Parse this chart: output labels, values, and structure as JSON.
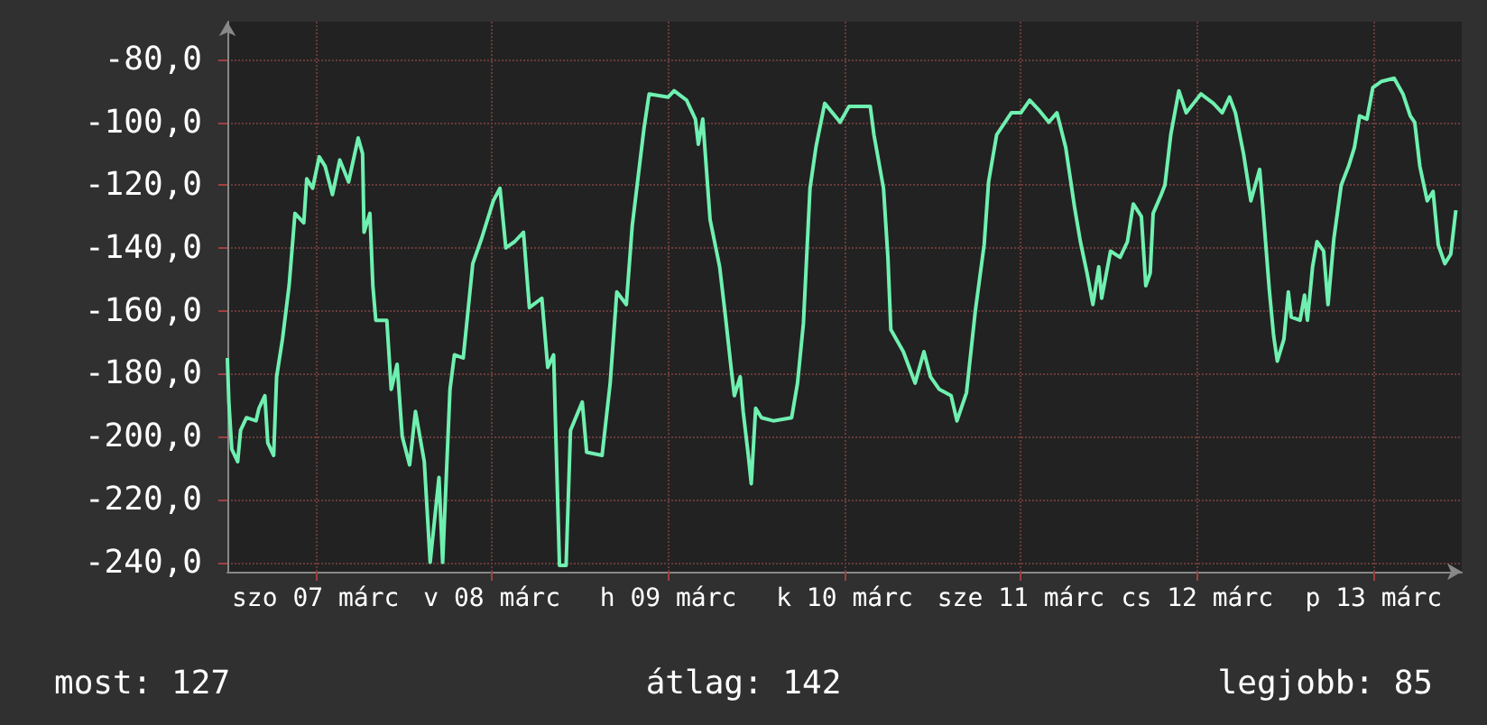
{
  "chart_data": {
    "type": "line",
    "xlim": [
      "--03-07T00:00",
      "--03-14T00:00"
    ],
    "ylim": [
      -243,
      -68
    ],
    "xticks": [
      {
        "value": "--03-07T12:00",
        "label": "szo 07 márc"
      },
      {
        "value": "--03-08T12:00",
        "label": "v 08 márc"
      },
      {
        "value": "--03-09T12:00",
        "label": "h 09 márc"
      },
      {
        "value": "--03-10T12:00",
        "label": "k 10 márc"
      },
      {
        "value": "--03-11T12:00",
        "label": "sze 11 márc"
      },
      {
        "value": "--03-12T12:00",
        "label": "cs 12 márc"
      },
      {
        "value": "--03-13T12:00",
        "label": "p 13 márc"
      }
    ],
    "yticks": [
      {
        "value": -240,
        "label": "-240,0"
      },
      {
        "value": -220,
        "label": "-220,0"
      },
      {
        "value": -200,
        "label": "-200,0"
      },
      {
        "value": -180,
        "label": "-180,0"
      },
      {
        "value": -160,
        "label": "-160,0"
      },
      {
        "value": -140,
        "label": "-140,0"
      },
      {
        "value": -120,
        "label": "-120,0"
      },
      {
        "value": -100,
        "label": "-100,0"
      },
      {
        "value": -80,
        "label": "-80,0"
      }
    ],
    "grid": true,
    "marker": "none",
    "line_style": "solid",
    "annotations": [
      "most: 127",
      "átlag: 142",
      "legjobb: 85"
    ],
    "series": [
      {
        "color": "#6ff0b0",
        "x": [
          "--03-07T00:00",
          "--03-07T00:12",
          "--03-07T00:36",
          "--03-07T01:24",
          "--03-07T01:48",
          "--03-07T02:36",
          "--03-07T03:54",
          "--03-07T04:18",
          "--03-07T05:06",
          "--03-07T05:30",
          "--03-07T06:18",
          "--03-07T06:42",
          "--03-07T07:30",
          "--03-07T08:24",
          "--03-07T09:12",
          "--03-07T10:24",
          "--03-07T10:48",
          "--03-07T11:36",
          "--03-07T12:30",
          "--03-07T13:18",
          "--03-07T14:18",
          "--03-07T15:18",
          "--03-07T16:30",
          "--03-07T17:48",
          "--03-07T18:24",
          "--03-07T18:36",
          "--03-07T19:24",
          "--03-07T19:48",
          "--03-07T20:12",
          "--03-07T21:42",
          "--03-07T22:18",
          "--03-07T23:06",
          "--03-07T23:48",
          "--03-08T00:48",
          "--03-08T01:36",
          "--03-08T02:48",
          "--03-08T03:36",
          "--03-08T04:48",
          "--03-08T05:18",
          "--03-08T06:18",
          "--03-08T06:54",
          "--03-08T08:06",
          "--03-08T09:24",
          "--03-08T10:36",
          "--03-08T12:12",
          "--03-08T13:06",
          "--03-08T13:54",
          "--03-08T15:06",
          "--03-08T16:18",
          "--03-08T17:06",
          "--03-08T18:48",
          "--03-08T19:36",
          "--03-08T20:24",
          "--03-08T21:12",
          "--03-08T22:06",
          "--03-08T22:42",
          "--03-09T00:18",
          "--03-09T00:54",
          "--03-09T03:00",
          "--03-09T04:06",
          "--03-09T05:00",
          "--03-09T06:18",
          "--03-09T07:06",
          "--03-09T08:42",
          "--03-09T09:24",
          "--03-09T12:00",
          "--03-09T12:48",
          "--03-09T14:30",
          "--03-09T15:42",
          "--03-09T16:06",
          "--03-09T16:42",
          "--03-09T17:42",
          "--03-09T19:00",
          "--03-09T19:48",
          "--03-09T20:36",
          "--03-09T21:00",
          "--03-09T21:48",
          "--03-09T22:12",
          "--03-09T22:54",
          "--03-09T23:18",
          "--03-09T23:54",
          "--03-10T00:42",
          "--03-10T02:18",
          "--03-10T04:48",
          "--03-10T05:36",
          "--03-10T06:24",
          "--03-10T07:18",
          "--03-10T08:06",
          "--03-10T09:18",
          "--03-10T11:24",
          "--03-10T12:36",
          "--03-10T15:30",
          "--03-10T16:00",
          "--03-10T17:18",
          "--03-10T17:54",
          "--03-10T18:18",
          "--03-10T20:00",
          "--03-10T21:36",
          "--03-10T22:48",
          "--03-10T23:42",
          "--03-11T00:54",
          "--03-11T02:30",
          "--03-11T03:18",
          "--03-11T04:36",
          "--03-11T05:48",
          "--03-11T07:00",
          "--03-11T07:36",
          "--03-11T08:42",
          "--03-11T10:42",
          "--03-11T12:00",
          "--03-11T13:12",
          "--03-11T14:24",
          "--03-11T15:48",
          "--03-11T16:54",
          "--03-11T18:06",
          "--03-11T19:18",
          "--03-11T20:06",
          "--03-11T21:00",
          "--03-11T21:48",
          "--03-11T22:36",
          "--03-11T23:00",
          "--03-12T00:12",
          "--03-12T01:30",
          "--03-12T02:30",
          "--03-12T03:18",
          "--03-12T04:24",
          "--03-12T05:00",
          "--03-12T05:36",
          "--03-12T06:00",
          "--03-12T07:06",
          "--03-12T07:36",
          "--03-12T08:24",
          "--03-12T09:30",
          "--03-12T10:30",
          "--03-12T11:30",
          "--03-12T12:30",
          "--03-12T14:12",
          "--03-12T15:24",
          "--03-12T16:24",
          "--03-12T17:12",
          "--03-12T18:18",
          "--03-12T19:18",
          "--03-12T20:30",
          "--03-12T21:00",
          "--03-12T21:48",
          "--03-12T22:24",
          "--03-12T22:54",
          "--03-12T23:48",
          "--03-13T00:24",
          "--03-13T00:48",
          "--03-13T02:00",
          "--03-13T02:36",
          "--03-13T03:00",
          "--03-13T03:42",
          "--03-13T04:18",
          "--03-13T05:12",
          "--03-13T05:48",
          "--03-13T06:36",
          "--03-13T07:36",
          "--03-13T08:36",
          "--03-13T09:24",
          "--03-13T10:06",
          "--03-13T11:06",
          "--03-13T11:54",
          "--03-13T13:06",
          "--03-13T14:48",
          "--03-13T16:00",
          "--03-13T17:00",
          "--03-13T17:36",
          "--03-13T18:18",
          "--03-13T19:18",
          "--03-13T20:06",
          "--03-13T20:48",
          "--03-13T21:42",
          "--03-13T22:30",
          "--03-13T23:12"
        ],
        "values": [
          -175,
          -189,
          -204,
          -208,
          -198,
          -194,
          -195,
          -191,
          -187,
          -202,
          -206,
          -181,
          -169,
          -152,
          -129,
          -132,
          -118,
          -121,
          -111,
          -114,
          -123,
          -112,
          -119,
          -105,
          -110,
          -135,
          -129,
          -152,
          -163,
          -163,
          -185,
          -177,
          -200,
          -209,
          -192,
          -208,
          -240,
          -213,
          -240,
          -185,
          -174,
          -175,
          -145,
          -137,
          -125,
          -121,
          -140,
          -138,
          -135,
          -159,
          -156,
          -178,
          -174,
          -241,
          -241,
          -198,
          -189,
          -205,
          -206,
          -183,
          -154,
          -158,
          -133,
          -102,
          -91,
          -92,
          -90,
          -93,
          -99,
          -107,
          -99,
          -131,
          -146,
          -162,
          -179,
          -187,
          -181,
          -192,
          -206,
          -215,
          -191,
          -194,
          -195,
          -194,
          -183,
          -164,
          -121,
          -108,
          -94,
          -100,
          -95,
          -95,
          -104,
          -121,
          -143,
          -166,
          -173,
          -183,
          -173,
          -181,
          -185,
          -187,
          -195,
          -186,
          -160,
          -139,
          -119,
          -104,
          -97,
          -97,
          -93,
          -96,
          -100,
          -97,
          -108,
          -127,
          -138,
          -148,
          -158,
          -146,
          -156,
          -141,
          -143,
          -138,
          -126,
          -130,
          -152,
          -148,
          -129,
          -123,
          -120,
          -104,
          -90,
          -97,
          -94,
          -91,
          -94,
          -97,
          -92,
          -97,
          -110,
          -125,
          -115,
          -129,
          -153,
          -168,
          -176,
          -169,
          -154,
          -162,
          -163,
          -155,
          -163,
          -146,
          -138,
          -141,
          -158,
          -137,
          -120,
          -114,
          -108,
          -98,
          -99,
          -89,
          -87,
          -86,
          -91,
          -98,
          -100,
          -114,
          -125,
          -122,
          -139,
          -145,
          -142,
          -128
        ]
      }
    ]
  }
}
